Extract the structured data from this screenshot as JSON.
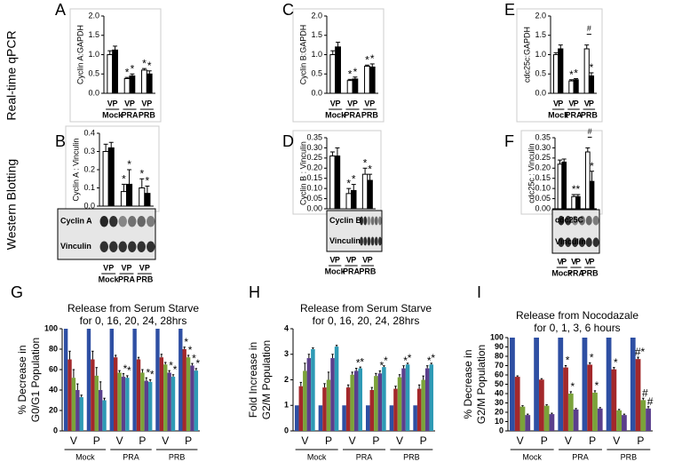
{
  "row_labels": [
    "Real-time qPCR",
    "Western Blotting"
  ],
  "chart_data": [
    {
      "type": "bar",
      "panel": "A",
      "ylabel": "Cyclin A:GAPDH",
      "ylim": [
        0,
        2
      ],
      "yticks": [
        {
          "value": 0,
          "label": "0.0"
        },
        {
          "value": 0.5,
          "label": "0.5"
        },
        {
          "value": 1,
          "label": "1.0"
        },
        {
          "value": 1.5,
          "label": "1.5"
        },
        {
          "value": 2,
          "label": "2.0"
        }
      ],
      "categories": [
        "Mock",
        "PRA",
        "PRB"
      ],
      "series": [
        {
          "name": "V",
          "color": "#ffffff",
          "values": [
            1.0,
            0.38,
            0.6
          ],
          "errors": [
            0.1,
            0.03,
            0.04
          ],
          "significance": [
            null,
            "*",
            "*"
          ]
        },
        {
          "name": "P",
          "color": "#000000",
          "values": [
            1.12,
            0.45,
            0.5
          ],
          "errors": [
            0.1,
            0.05,
            0.08
          ],
          "significance": [
            null,
            "*",
            "*"
          ]
        }
      ]
    },
    {
      "type": "bar",
      "panel": "C",
      "ylabel": "Cyclin B:GAPDH",
      "ylim": [
        0,
        2
      ],
      "yticks": [
        {
          "value": 0,
          "label": "0.0"
        },
        {
          "value": 0.5,
          "label": "0.5"
        },
        {
          "value": 1,
          "label": "1.0"
        },
        {
          "value": 1.5,
          "label": "1.5"
        },
        {
          "value": 2,
          "label": "2.0"
        }
      ],
      "categories": [
        "Mock",
        "PRA",
        "PRB"
      ],
      "series": [
        {
          "name": "V",
          "color": "#ffffff",
          "values": [
            1.0,
            0.33,
            0.7
          ],
          "errors": [
            0.1,
            0.03,
            0.03
          ],
          "significance": [
            null,
            "*",
            "*"
          ]
        },
        {
          "name": "P",
          "color": "#000000",
          "values": [
            1.2,
            0.37,
            0.68
          ],
          "errors": [
            0.12,
            0.05,
            0.08
          ],
          "significance": [
            null,
            "*",
            "*"
          ]
        }
      ]
    },
    {
      "type": "bar",
      "panel": "E",
      "ylabel": "cdc25c:GAPDH",
      "ylim": [
        0,
        2
      ],
      "yticks": [
        {
          "value": 0,
          "label": "0.0"
        },
        {
          "value": 0.5,
          "label": "0.5"
        },
        {
          "value": 1,
          "label": "1.0"
        },
        {
          "value": 1.5,
          "label": "1.5"
        },
        {
          "value": 2,
          "label": "2.0"
        }
      ],
      "categories": [
        "Mock",
        "PRA",
        "PRB"
      ],
      "bracket_label": "#",
      "series": [
        {
          "name": "V",
          "color": "#ffffff",
          "values": [
            1.0,
            0.32,
            1.15
          ],
          "errors": [
            0.05,
            0.03,
            0.1
          ],
          "significance": [
            null,
            "*",
            null
          ]
        },
        {
          "name": "P",
          "color": "#000000",
          "values": [
            1.15,
            0.35,
            0.45
          ],
          "errors": [
            0.1,
            0.03,
            0.08
          ],
          "significance": [
            null,
            "*",
            "*"
          ]
        }
      ]
    },
    {
      "type": "bar",
      "panel": "B",
      "ylabel": "Cyclin A : Vinculin",
      "ylim": [
        0,
        0.4
      ],
      "yticks": [
        {
          "value": 0,
          "label": "0.0"
        },
        0.1,
        0.2,
        0.3,
        0.4
      ],
      "categories": [
        "Mock",
        "PRA",
        "PRB"
      ],
      "blot_labels": [
        "Cyclin A",
        "Vinculin"
      ],
      "series": [
        {
          "name": "V",
          "color": "#ffffff",
          "values": [
            0.3,
            0.08,
            0.1
          ],
          "errors": [
            0.04,
            0.04,
            0.05
          ],
          "significance": [
            null,
            "*",
            "*"
          ]
        },
        {
          "name": "P",
          "color": "#000000",
          "values": [
            0.32,
            0.12,
            0.07
          ],
          "errors": [
            0.03,
            0.08,
            0.04
          ],
          "significance": [
            null,
            "*",
            "*"
          ]
        }
      ]
    },
    {
      "type": "bar",
      "panel": "D",
      "ylabel": "Cyclin B : Vinculin",
      "ylim": [
        0,
        0.35
      ],
      "yticks": [
        {
          "value": 0,
          "label": "0.00"
        },
        0.05,
        {
          "value": 0.1,
          "label": "0.10"
        },
        0.15,
        {
          "value": 0.2,
          "label": "0.20"
        },
        0.25,
        {
          "value": 0.3,
          "label": "0.30"
        },
        0.35
      ],
      "categories": [
        "Mock",
        "PRA",
        "PRB"
      ],
      "blot_labels": [
        "Cyclin B",
        "Vinculin"
      ],
      "series": [
        {
          "name": "V",
          "color": "#ffffff",
          "values": [
            0.26,
            0.075,
            0.17
          ],
          "errors": [
            0.02,
            0.025,
            0.03
          ],
          "significance": [
            null,
            "*",
            "*"
          ]
        },
        {
          "name": "P",
          "color": "#000000",
          "values": [
            0.26,
            0.09,
            0.14
          ],
          "errors": [
            0.04,
            0.03,
            0.03
          ],
          "significance": [
            null,
            "*",
            "*"
          ]
        }
      ]
    },
    {
      "type": "bar",
      "panel": "F",
      "ylabel": "cdc25c : Vinculin",
      "ylim": [
        0,
        0.35
      ],
      "yticks": [
        {
          "value": 0,
          "label": "0.00"
        },
        0.05,
        {
          "value": 0.1,
          "label": "0.10"
        },
        0.15,
        {
          "value": 0.2,
          "label": "0.20"
        },
        0.25,
        {
          "value": 0.3,
          "label": "0.30"
        },
        0.35
      ],
      "categories": [
        "Mock",
        "PRA",
        "PRB"
      ],
      "blot_labels": [
        "cdc25C",
        "Vinculin"
      ],
      "bracket_label": "#",
      "series": [
        {
          "name": "V",
          "color": "#ffffff",
          "values": [
            0.22,
            0.06,
            0.28
          ],
          "errors": [
            0.02,
            0.01,
            0.02
          ],
          "significance": [
            null,
            "*",
            null
          ]
        },
        {
          "name": "P",
          "color": "#000000",
          "values": [
            0.23,
            0.06,
            0.135
          ],
          "errors": [
            0.015,
            0.01,
            0.05
          ],
          "significance": [
            null,
            "*",
            "*"
          ]
        }
      ]
    },
    {
      "type": "grouped_bar",
      "panel": "G",
      "title": "Release from Serum Starve",
      "subtitle": "for 0, 16, 20, 24, 28hrs",
      "ylabel": [
        "% Decrease in",
        "G0/G1 Population"
      ],
      "ylim": [
        0,
        100
      ],
      "yticks": [
        0,
        20,
        40,
        60,
        80,
        100
      ],
      "categories": [
        "V",
        "P",
        "V",
        "P",
        "V",
        "P"
      ],
      "groups": [
        "Mock",
        "PRA",
        "PRB"
      ],
      "series": [
        {
          "color": "#2e4fa3",
          "values": [
            100,
            100,
            100,
            100,
            100,
            100
          ]
        },
        {
          "color": "#a3282b",
          "values": [
            70,
            70,
            72,
            70,
            72,
            80
          ],
          "errors": [
            8,
            8,
            2,
            2,
            3,
            2
          ],
          "significance": [
            null,
            null,
            null,
            null,
            null,
            "*"
          ]
        },
        {
          "color": "#7ba33a",
          "values": [
            52,
            54,
            57,
            57,
            65,
            72
          ],
          "errors": [
            8,
            8,
            2,
            3,
            2,
            2
          ],
          "significance": [
            null,
            null,
            null,
            null,
            null,
            "*"
          ]
        },
        {
          "color": "#5b3f8c",
          "values": [
            40,
            40,
            53,
            49,
            57,
            64
          ],
          "errors": [
            6,
            8,
            3,
            3,
            2,
            2
          ],
          "significance": [
            null,
            null,
            "*",
            "*",
            "*",
            "*"
          ]
        },
        {
          "color": "#2e9ab5",
          "values": [
            33,
            30,
            52,
            48,
            53,
            59
          ],
          "errors": [
            2,
            2,
            2,
            2,
            2,
            2
          ],
          "significance": [
            null,
            null,
            "*",
            "*",
            "*",
            "*"
          ]
        }
      ]
    },
    {
      "type": "grouped_bar",
      "panel": "H",
      "title": "Release from Serum Starve",
      "subtitle": "for 0, 16, 20, 24, 28hrs",
      "ylabel": [
        "Fold Increase in",
        "G2/M Population"
      ],
      "ylim": [
        0,
        4
      ],
      "yticks": [
        0,
        1,
        2,
        3,
        4
      ],
      "categories": [
        "V",
        "P",
        "V",
        "P",
        "V",
        "P"
      ],
      "groups": [
        "Mock",
        "PRA",
        "PRB"
      ],
      "series": [
        {
          "color": "#2e4fa3",
          "values": [
            1,
            1,
            1,
            1,
            1,
            1
          ]
        },
        {
          "color": "#a3282b",
          "values": [
            1.75,
            1.7,
            1.7,
            1.6,
            1.65,
            1.65
          ],
          "errors": [
            0.15,
            0.15,
            0.1,
            0.1,
            0.1,
            0.15
          ]
        },
        {
          "color": "#7ba33a",
          "values": [
            2.35,
            2.0,
            2.2,
            2.15,
            2.1,
            2.0
          ],
          "errors": [
            0.3,
            0.3,
            0.1,
            0.1,
            0.1,
            0.15
          ]
        },
        {
          "color": "#5b3f8c",
          "values": [
            2.85,
            2.85,
            2.35,
            2.25,
            2.45,
            2.45
          ],
          "errors": [
            0.15,
            0.15,
            0.1,
            0.1,
            0.1,
            0.1
          ],
          "significance": [
            null,
            null,
            "*",
            "*",
            "*",
            "*"
          ]
        },
        {
          "color": "#2e9ab5",
          "values": [
            3.2,
            3.3,
            2.45,
            2.5,
            2.6,
            2.6
          ],
          "errors": [
            0.05,
            0.05,
            0.05,
            0.05,
            0.05,
            0.05
          ],
          "significance": [
            null,
            null,
            "*",
            "*",
            "*",
            "*"
          ]
        }
      ]
    },
    {
      "type": "grouped_bar",
      "panel": "I",
      "title": "Release from Nocodazale",
      "subtitle": "for 0, 1, 3, 6 hours",
      "ylabel": [
        "% Decrease in",
        "G2/M Population"
      ],
      "ylim": [
        0,
        100
      ],
      "yticks": [
        0,
        10,
        20,
        30,
        40,
        50,
        60,
        70,
        80,
        90,
        100
      ],
      "categories": [
        "V",
        "P",
        "V",
        "P",
        "V",
        "P"
      ],
      "groups": [
        "Mock",
        "PRA",
        "PRB"
      ],
      "series": [
        {
          "color": "#2e4fa3",
          "values": [
            100,
            100,
            100,
            100,
            100,
            100
          ]
        },
        {
          "color": "#a3282b",
          "values": [
            58,
            55,
            68,
            71,
            66,
            77
          ],
          "errors": [
            1,
            1,
            2,
            2,
            2,
            2
          ],
          "significance": [
            null,
            null,
            "*",
            "*",
            "*",
            "#*"
          ]
        },
        {
          "color": "#7ba33a",
          "values": [
            26,
            27,
            40,
            41,
            22,
            33
          ],
          "errors": [
            1,
            1,
            2,
            2,
            1,
            2
          ],
          "significance": [
            null,
            null,
            "*",
            "*",
            null,
            "#"
          ]
        },
        {
          "color": "#5b3f8c",
          "values": [
            17,
            18,
            23,
            24,
            17,
            24
          ],
          "errors": [
            1,
            1,
            1,
            1,
            1,
            2
          ],
          "significance": [
            null,
            null,
            null,
            null,
            null,
            "#"
          ]
        }
      ]
    }
  ]
}
